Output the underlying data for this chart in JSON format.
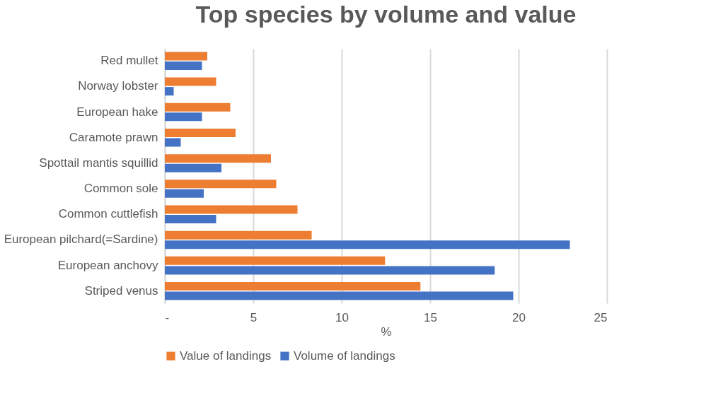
{
  "chart_data": {
    "type": "bar",
    "orientation": "horizontal",
    "title": "Top species by volume and value",
    "xlabel": "%",
    "categories": [
      "Red mullet",
      "Norway lobster",
      "European hake",
      "Caramote prawn",
      "Spottail mantis squillid",
      "Common sole",
      "Common cuttlefish",
      "European pilchard(=Sardine)",
      "European anchovy",
      "Striped venus"
    ],
    "series": [
      {
        "name": "Value of landings",
        "color": "#ed7d31",
        "values": [
          2.4,
          2.9,
          3.7,
          4.0,
          6.0,
          6.3,
          7.5,
          8.3,
          12.45,
          14.45
        ]
      },
      {
        "name": "Volume of landings",
        "color": "#4472c4",
        "values": [
          2.1,
          0.5,
          2.1,
          0.9,
          3.2,
          2.2,
          2.9,
          22.9,
          18.65,
          19.7
        ]
      }
    ],
    "xlim": [
      0,
      25
    ],
    "xticks": [
      {
        "value": 0,
        "label": "-"
      },
      5,
      10,
      15,
      20,
      25
    ],
    "grid": "x",
    "legend": "bottom"
  }
}
